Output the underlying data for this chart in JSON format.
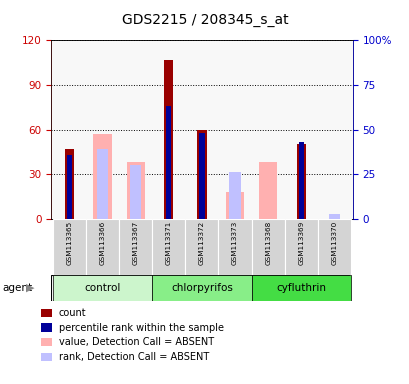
{
  "title": "GDS2215 / 208345_s_at",
  "samples": [
    "GSM113365",
    "GSM113366",
    "GSM113367",
    "GSM113371",
    "GSM113372",
    "GSM113373",
    "GSM113368",
    "GSM113369",
    "GSM113370"
  ],
  "count_values": [
    47,
    null,
    null,
    107,
    60,
    null,
    null,
    50,
    null
  ],
  "percentile_values": [
    36,
    null,
    null,
    63,
    48,
    null,
    null,
    43,
    null
  ],
  "absent_value_values": [
    null,
    57,
    38,
    null,
    null,
    18,
    38,
    null,
    null
  ],
  "absent_rank_values": [
    null,
    39,
    30,
    null,
    null,
    26,
    null,
    null,
    3
  ],
  "ylim_left": [
    0,
    120
  ],
  "ylim_right": [
    0,
    100
  ],
  "yticks_left": [
    0,
    30,
    60,
    90,
    120
  ],
  "yticks_right": [
    0,
    25,
    50,
    75,
    100
  ],
  "ytick_labels_right": [
    "0",
    "25",
    "50",
    "75",
    "100%"
  ],
  "count_color": "#990000",
  "percentile_color": "#000099",
  "absent_value_color": "#ffb0b0",
  "absent_rank_color": "#c0c0ff",
  "groups_data": [
    {
      "name": "control",
      "start": 0,
      "end": 2,
      "color": "#ccf5cc"
    },
    {
      "name": "chlorpyrifos",
      "start": 3,
      "end": 5,
      "color": "#88ee88"
    },
    {
      "name": "cyfluthrin",
      "start": 6,
      "end": 8,
      "color": "#44dd44"
    }
  ],
  "legend_items": [
    {
      "label": "count",
      "color": "#990000"
    },
    {
      "label": "percentile rank within the sample",
      "color": "#000099"
    },
    {
      "label": "value, Detection Call = ABSENT",
      "color": "#ffb0b0"
    },
    {
      "label": "rank, Detection Call = ABSENT",
      "color": "#c0c0ff"
    }
  ]
}
